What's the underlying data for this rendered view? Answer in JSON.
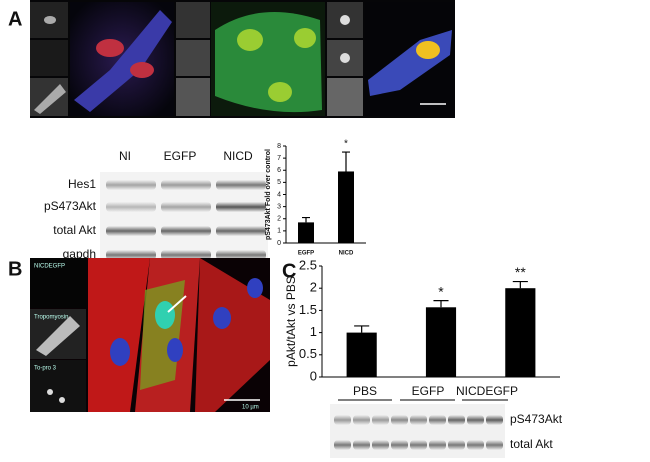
{
  "panels": {
    "a": "A",
    "b": "B",
    "c": "C"
  },
  "blot_a": {
    "lanes": [
      "NI",
      "EGFP",
      "NICD"
    ],
    "rows": [
      "Hes1",
      "pS473Akt",
      "total Akt",
      "gapdh"
    ]
  },
  "blot_c": {
    "rows": [
      "pS473Akt",
      "total Akt"
    ]
  },
  "image_b": {
    "labels": [
      "NICDEGFP",
      "Tropomyosin",
      "To-pro 3"
    ],
    "scale": "10 µm"
  },
  "chart_data": [
    {
      "type": "bar",
      "ylabel": "pS473Akt Fold over control",
      "categories": [
        "EGFP",
        "NICD"
      ],
      "values": [
        1.7,
        5.9
      ],
      "errors": [
        0.4,
        1.6
      ],
      "significance": [
        null,
        "*"
      ],
      "ylim": [
        0,
        8
      ],
      "yticks": [
        0,
        1,
        2,
        3,
        4,
        5,
        6,
        7,
        8
      ],
      "color": "#000000"
    },
    {
      "type": "bar",
      "ylabel": "pAkt/tAkt vs PBS",
      "categories": [
        "PBS",
        "EGFP",
        "NICDEGFP"
      ],
      "values": [
        1.0,
        1.57,
        2.0
      ],
      "errors": [
        0.15,
        0.15,
        0.15
      ],
      "significance": [
        null,
        "*",
        "**"
      ],
      "ylim": [
        0,
        2.5
      ],
      "yticks": [
        0,
        0.5,
        1,
        1.5,
        2,
        2.5
      ],
      "color": "#000000"
    }
  ]
}
